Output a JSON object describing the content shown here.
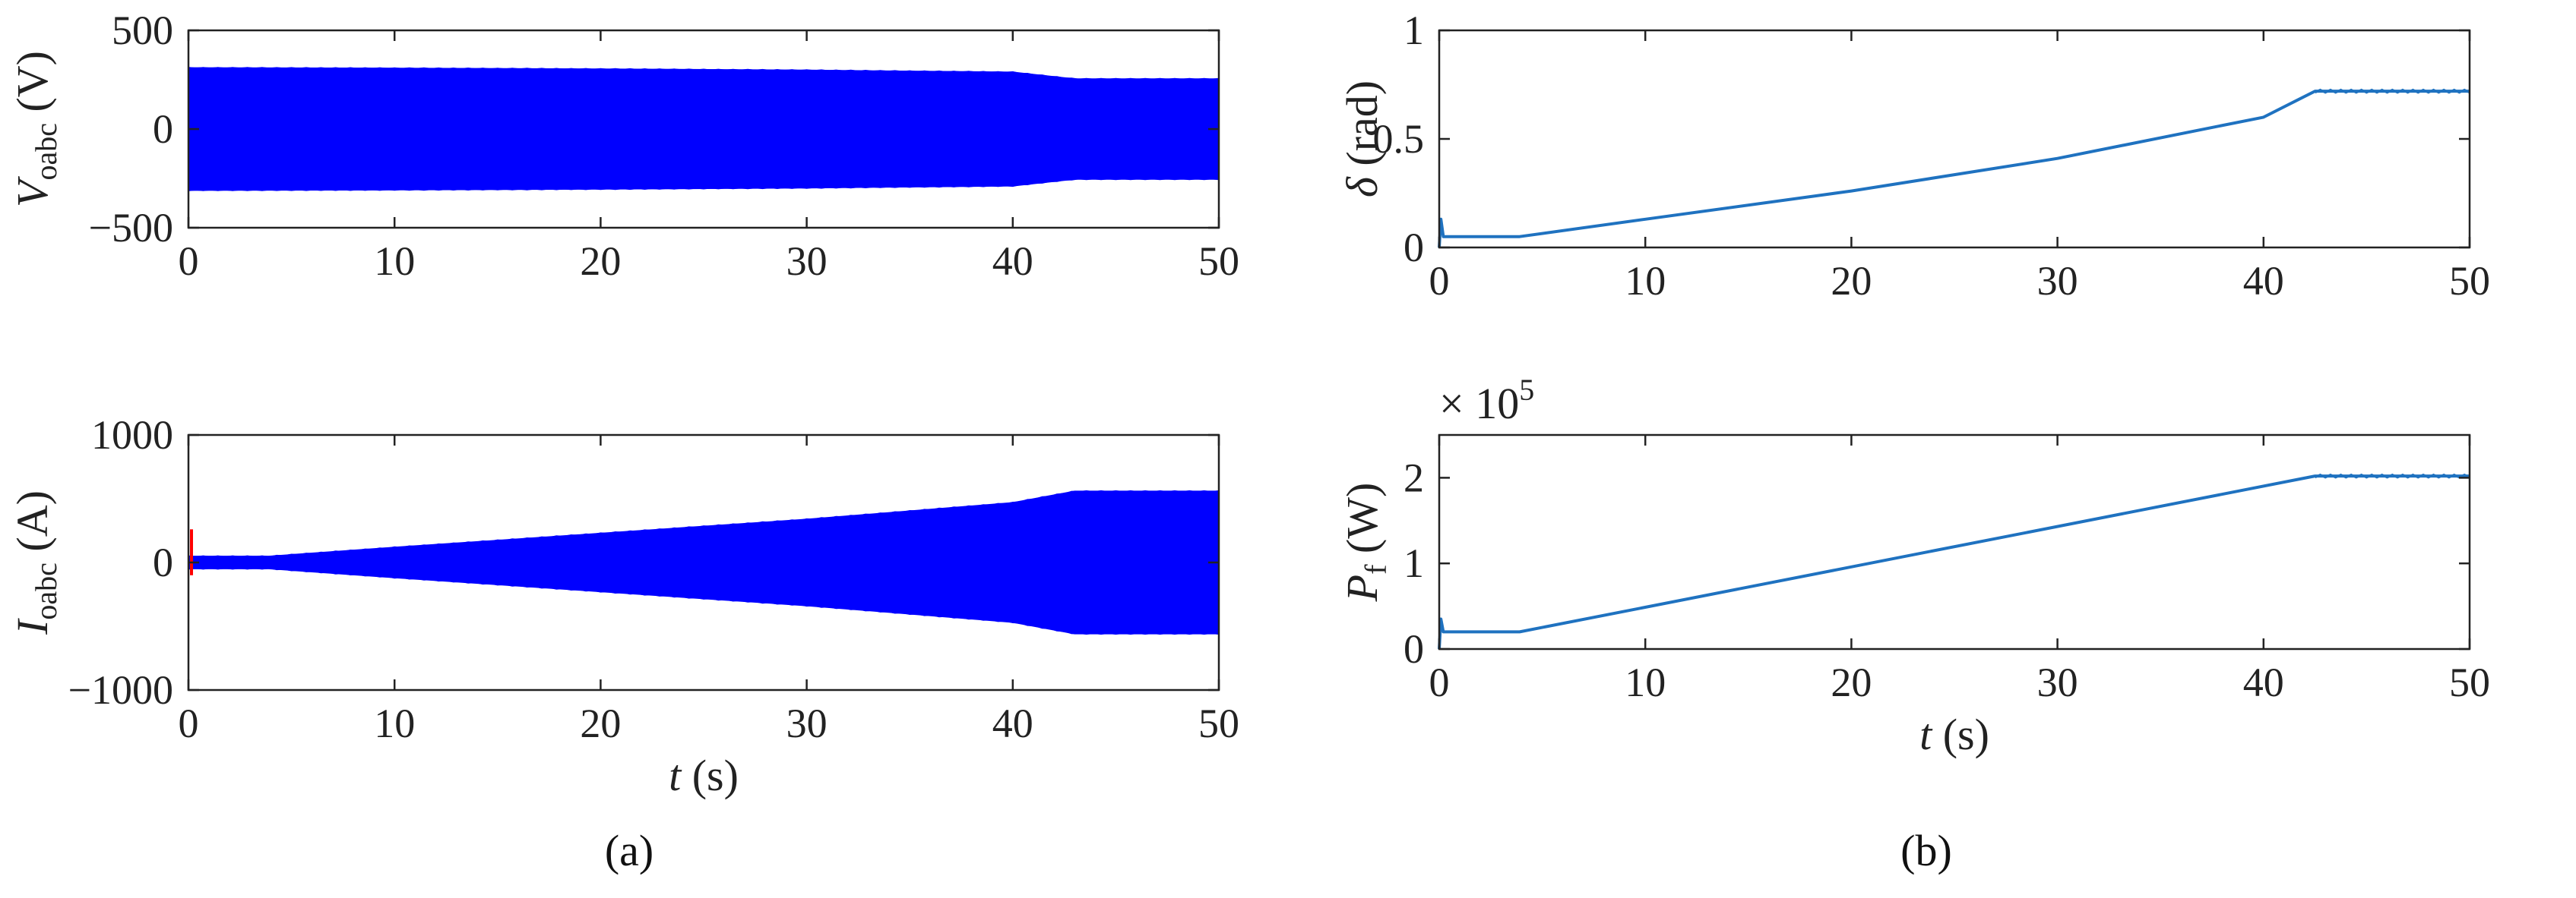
{
  "colors": {
    "wave": "#0000ff",
    "wave_red": "#ff0000",
    "line": "#1f72c0",
    "axis": "#222222"
  },
  "captions": {
    "a": "(a)",
    "b": "(b)"
  },
  "chart_data": [
    {
      "id": "voabc",
      "type": "line",
      "ylabel": {
        "main": "V",
        "sub": "oabc",
        "unit": " (V)"
      },
      "xlabel": null,
      "xlim": [
        0,
        50
      ],
      "ylim": [
        -500,
        500
      ],
      "xticks": [
        "0",
        "10",
        "20",
        "30",
        "40",
        "50"
      ],
      "xtick_values": [
        0,
        10,
        20,
        30,
        40,
        50
      ],
      "yticks": [
        "500",
        "0",
        "−500"
      ],
      "ytick_values": [
        500,
        0,
        -500
      ],
      "grid": false,
      "envelope": {
        "x": [
          0,
          10,
          20,
          30,
          40,
          43,
          50
        ],
        "upper": [
          311,
          309,
          305,
          299,
          289,
          255,
          255
        ],
        "lower": [
          -311,
          -309,
          -305,
          -299,
          -289,
          -255,
          -255
        ]
      }
    },
    {
      "id": "ioabc",
      "type": "line",
      "ylabel": {
        "main": "I",
        "sub": "oabc",
        "unit": " (A)"
      },
      "xlabel": {
        "main": "t",
        "unit": " (s)"
      },
      "xlim": [
        0,
        50
      ],
      "ylim": [
        -1000,
        1000
      ],
      "xticks": [
        "0",
        "10",
        "20",
        "30",
        "40",
        "50"
      ],
      "xtick_values": [
        0,
        10,
        20,
        30,
        40,
        50
      ],
      "yticks": [
        "1000",
        "0",
        "−1000"
      ],
      "ytick_values": [
        1000,
        0,
        -1000
      ],
      "grid": false,
      "envelope": {
        "x": [
          0,
          3.9,
          10,
          20,
          30,
          40,
          43,
          50
        ],
        "upper": [
          50,
          50,
          120,
          230,
          340,
          470,
          560,
          560
        ],
        "lower": [
          -50,
          -50,
          -120,
          -230,
          -340,
          -470,
          -560,
          -560
        ]
      },
      "transient_red": {
        "x": [
          0,
          0.15
        ],
        "y": [
          -100,
          260
        ]
      }
    },
    {
      "id": "delta",
      "type": "line",
      "ylabel": {
        "main": "δ",
        "sub": "",
        "unit": " (rad)"
      },
      "xlabel": null,
      "xlim": [
        0,
        50
      ],
      "ylim": [
        0,
        1
      ],
      "xticks": [
        "0",
        "10",
        "20",
        "30",
        "40",
        "50"
      ],
      "xtick_values": [
        0,
        10,
        20,
        30,
        40,
        50
      ],
      "yticks": [
        "1",
        "0.5",
        "0"
      ],
      "ytick_values": [
        1,
        0.5,
        0
      ],
      "grid": false,
      "series": [
        {
          "x": [
            0,
            0.08,
            0.2,
            3.9,
            10,
            20,
            30,
            40,
            42.5,
            50
          ],
          "y": [
            0,
            0.13,
            0.05,
            0.05,
            0.13,
            0.26,
            0.41,
            0.6,
            0.72,
            0.72
          ]
        }
      ]
    },
    {
      "id": "pf",
      "type": "line",
      "ylabel": {
        "main": "P",
        "sub": "f",
        "unit": " (W)"
      },
      "xlabel": {
        "main": "t",
        "unit": " (s)"
      },
      "exponent": "× 10",
      "exponent_power": "5",
      "xlim": [
        0,
        50
      ],
      "ylim": [
        0,
        2.5
      ],
      "xticks": [
        "0",
        "10",
        "20",
        "30",
        "40",
        "50"
      ],
      "xtick_values": [
        0,
        10,
        20,
        30,
        40,
        50
      ],
      "yticks": [
        "2",
        "1",
        "0"
      ],
      "ytick_values": [
        2,
        1,
        0
      ],
      "grid": false,
      "series": [
        {
          "x": [
            0,
            0.08,
            0.2,
            3.9,
            42.5,
            50
          ],
          "y": [
            0,
            0.35,
            0.2,
            0.2,
            2.02,
            2.02
          ]
        }
      ]
    }
  ]
}
